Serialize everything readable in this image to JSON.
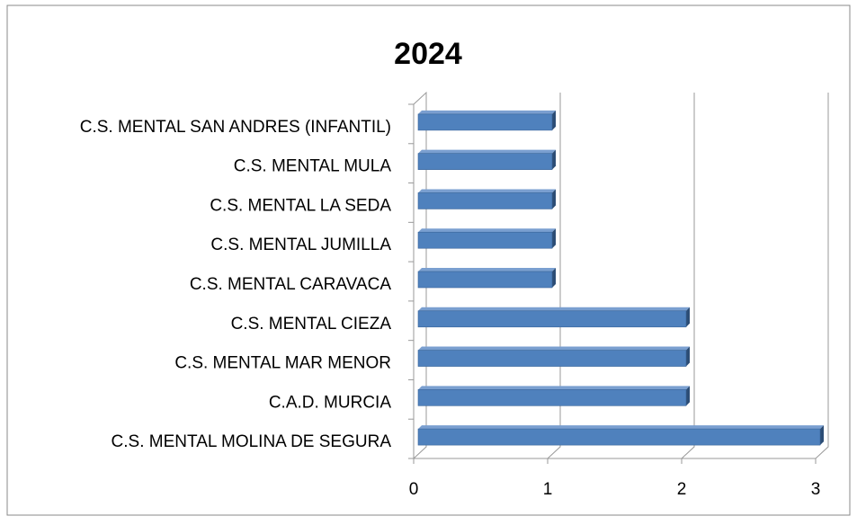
{
  "chart_data": {
    "type": "bar",
    "orientation": "horizontal",
    "title": "2024",
    "categories": [
      "C.S. MENTAL SAN ANDRES (INFANTIL)",
      "C.S. MENTAL MULA",
      "C.S. MENTAL LA SEDA",
      "C.S. MENTAL JUMILLA",
      "C.S. MENTAL CARAVACA",
      "C.S. MENTAL CIEZA",
      "C.S. MENTAL MAR MENOR",
      "C.A.D. MURCIA",
      "C.S. MENTAL MOLINA DE SEGURA"
    ],
    "values": [
      1,
      1,
      1,
      1,
      1,
      2,
      2,
      2,
      3
    ],
    "color": "#4f81bd",
    "xlim": [
      0,
      3
    ],
    "xticks": [
      0,
      1,
      2,
      3
    ],
    "grid": true
  }
}
